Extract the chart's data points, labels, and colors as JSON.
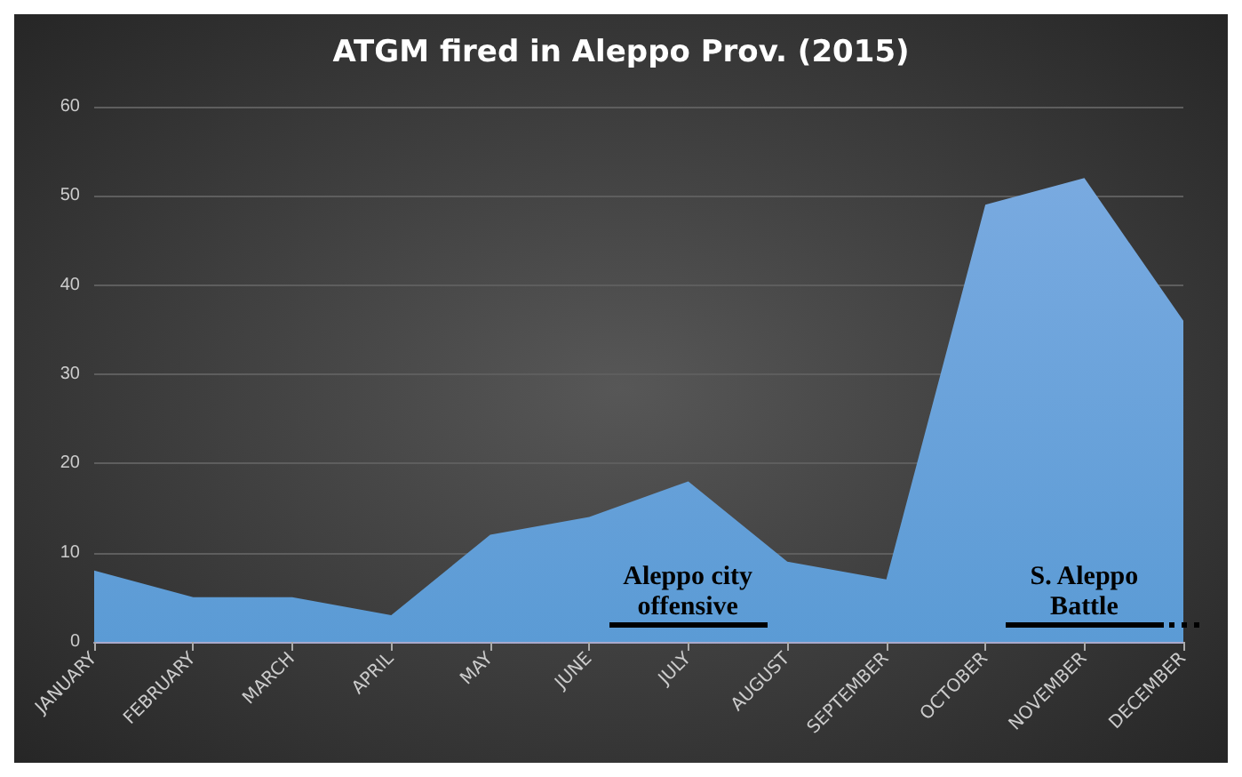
{
  "chart_data": {
    "type": "area",
    "title": "ATGM fired in Aleppo Prov. (2015)",
    "categories": [
      "JANUARY",
      "FEBRUARY",
      "MARCH",
      "APRIL",
      "MAY",
      "JUNE",
      "JULY",
      "AUGUST",
      "SEPTEMBER",
      "OCTOBER",
      "NOVEMBER",
      "DECEMBER"
    ],
    "values": [
      8,
      5,
      5,
      3,
      12,
      14,
      18,
      9,
      7,
      49,
      52,
      36
    ],
    "color": "#5b9bd5",
    "ylim": [
      0,
      60
    ],
    "yticks": [
      0,
      10,
      20,
      30,
      40,
      50,
      60
    ],
    "grid": "y",
    "annotations": [
      "Aleppo city\noffensive",
      "S. Aleppo\nBattle"
    ]
  }
}
